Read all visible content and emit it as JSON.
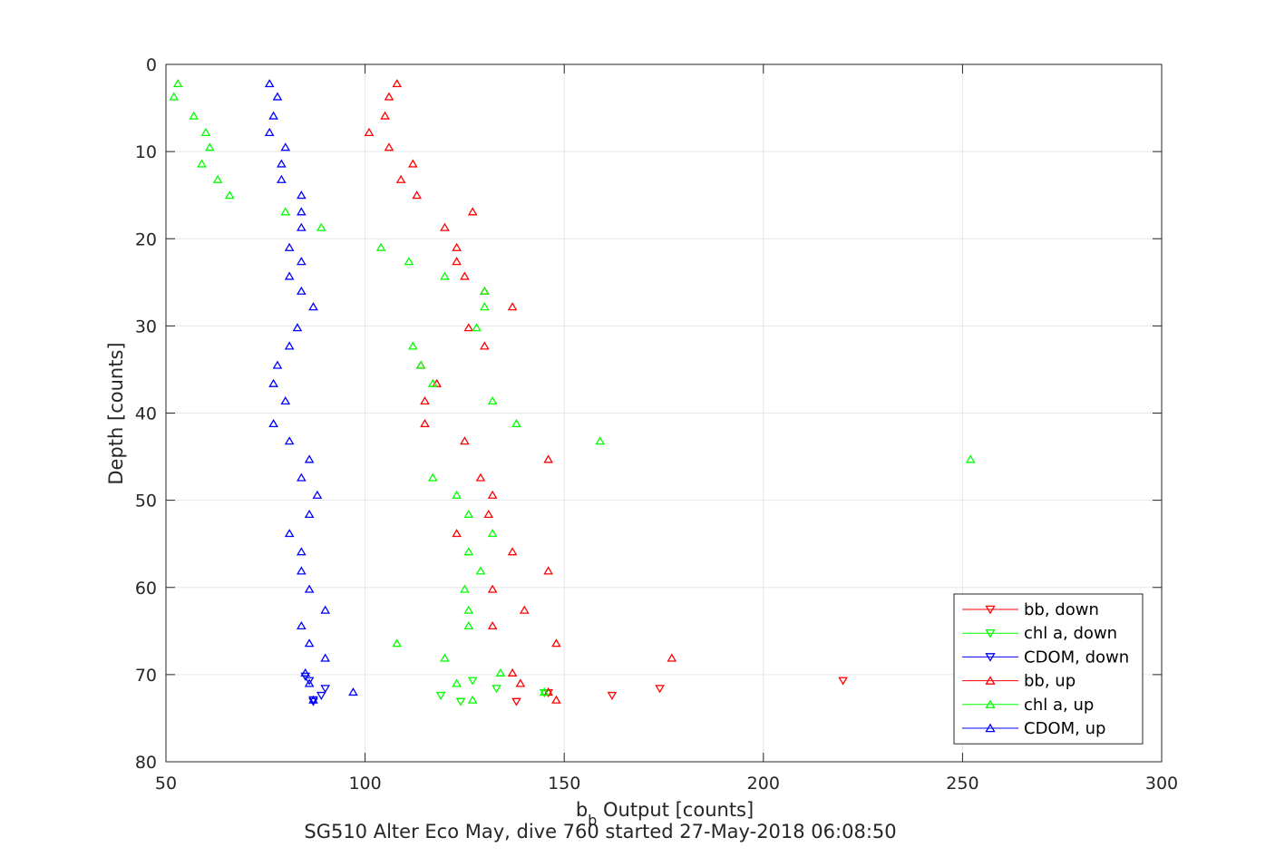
{
  "chart_data": {
    "type": "scatter",
    "title": "SG510 Alter Eco May, dive 760 started 27-May-2018 06:08:50",
    "xlabel_main": "b",
    "xlabel_sub": "b",
    "xlabel_rest": " Output [counts]",
    "ylabel": "Depth [counts]",
    "xlim": [
      50,
      300
    ],
    "ylim": [
      0,
      80
    ],
    "y_reversed": true,
    "xticks": [
      50,
      100,
      150,
      200,
      250,
      300
    ],
    "yticks": [
      0,
      10,
      20,
      30,
      40,
      50,
      60,
      70,
      80
    ],
    "grid": true,
    "legend_position": "bottom-right",
    "series": [
      {
        "name": "bb, down",
        "color": "#ff0000",
        "marker": "triangle-down",
        "points": [
          [
            138,
            73.1
          ],
          [
            162,
            72.4
          ],
          [
            174,
            71.6
          ],
          [
            220,
            70.7
          ],
          [
            146,
            72.1
          ]
        ]
      },
      {
        "name": "chl a, down",
        "color": "#00ff00",
        "marker": "triangle-down",
        "points": [
          [
            124,
            73.1
          ],
          [
            119,
            72.4
          ],
          [
            133,
            71.6
          ],
          [
            127,
            70.7
          ],
          [
            145,
            72.1
          ]
        ]
      },
      {
        "name": "CDOM, down",
        "color": "#0000ff",
        "marker": "triangle-down",
        "points": [
          [
            87,
            73.1
          ],
          [
            89,
            72.4
          ],
          [
            90,
            71.6
          ],
          [
            86,
            70.7
          ],
          [
            85,
            70.2
          ],
          [
            87,
            72.9
          ]
        ]
      },
      {
        "name": "bb, up",
        "color": "#ff0000",
        "marker": "triangle-up",
        "points": [
          [
            108,
            2.2
          ],
          [
            106,
            3.7
          ],
          [
            105,
            5.9
          ],
          [
            101,
            7.8
          ],
          [
            106,
            9.5
          ],
          [
            112,
            11.4
          ],
          [
            109,
            13.2
          ],
          [
            113,
            15.0
          ],
          [
            127,
            16.9
          ],
          [
            120,
            18.7
          ],
          [
            123,
            21.0
          ],
          [
            123,
            22.6
          ],
          [
            125,
            24.3
          ],
          [
            130,
            26.0
          ],
          [
            137,
            27.8
          ],
          [
            126,
            30.2
          ],
          [
            130,
            32.3
          ],
          [
            114,
            34.5
          ],
          [
            118,
            36.6
          ],
          [
            115,
            38.6
          ],
          [
            115,
            41.2
          ],
          [
            125,
            43.2
          ],
          [
            146,
            45.3
          ],
          [
            129,
            47.4
          ],
          [
            132,
            49.4
          ],
          [
            131,
            51.6
          ],
          [
            123,
            53.8
          ],
          [
            137,
            55.9
          ],
          [
            146,
            58.1
          ],
          [
            132,
            60.2
          ],
          [
            140,
            62.6
          ],
          [
            132,
            64.4
          ],
          [
            148,
            66.4
          ],
          [
            177,
            68.1
          ],
          [
            137,
            69.8
          ],
          [
            139,
            71.0
          ],
          [
            146,
            72.0
          ],
          [
            148,
            72.9
          ]
        ]
      },
      {
        "name": "chl a, up",
        "color": "#00ff00",
        "marker": "triangle-up",
        "points": [
          [
            53,
            2.2
          ],
          [
            52,
            3.7
          ],
          [
            57,
            5.9
          ],
          [
            60,
            7.8
          ],
          [
            61,
            9.5
          ],
          [
            59,
            11.4
          ],
          [
            63,
            13.2
          ],
          [
            66,
            15.0
          ],
          [
            80,
            16.9
          ],
          [
            89,
            18.7
          ],
          [
            104,
            21.0
          ],
          [
            111,
            22.6
          ],
          [
            120,
            24.3
          ],
          [
            130,
            26.0
          ],
          [
            130,
            27.8
          ],
          [
            128,
            30.2
          ],
          [
            112,
            32.3
          ],
          [
            114,
            34.5
          ],
          [
            117,
            36.6
          ],
          [
            132,
            38.6
          ],
          [
            138,
            41.2
          ],
          [
            159,
            43.2
          ],
          [
            252,
            45.3
          ],
          [
            117,
            47.4
          ],
          [
            123,
            49.4
          ],
          [
            126,
            51.6
          ],
          [
            132,
            53.8
          ],
          [
            126,
            55.9
          ],
          [
            129,
            58.1
          ],
          [
            125,
            60.2
          ],
          [
            126,
            62.6
          ],
          [
            126,
            64.4
          ],
          [
            108,
            66.4
          ],
          [
            120,
            68.1
          ],
          [
            134,
            69.8
          ],
          [
            123,
            71.0
          ],
          [
            145,
            72.0
          ],
          [
            127,
            72.9
          ]
        ]
      },
      {
        "name": "CDOM, up",
        "color": "#0000ff",
        "marker": "triangle-up",
        "points": [
          [
            76,
            2.2
          ],
          [
            78,
            3.7
          ],
          [
            77,
            5.9
          ],
          [
            76,
            7.8
          ],
          [
            80,
            9.5
          ],
          [
            79,
            11.4
          ],
          [
            79,
            13.2
          ],
          [
            84,
            15.0
          ],
          [
            84,
            16.9
          ],
          [
            84,
            18.7
          ],
          [
            81,
            21.0
          ],
          [
            84,
            22.6
          ],
          [
            81,
            24.3
          ],
          [
            84,
            26.0
          ],
          [
            87,
            27.8
          ],
          [
            83,
            30.2
          ],
          [
            81,
            32.3
          ],
          [
            78,
            34.5
          ],
          [
            77,
            36.6
          ],
          [
            80,
            38.6
          ],
          [
            77,
            41.2
          ],
          [
            81,
            43.2
          ],
          [
            86,
            45.3
          ],
          [
            84,
            47.4
          ],
          [
            88,
            49.4
          ],
          [
            86,
            51.6
          ],
          [
            81,
            53.8
          ],
          [
            84,
            55.9
          ],
          [
            84,
            58.1
          ],
          [
            86,
            60.2
          ],
          [
            90,
            62.6
          ],
          [
            84,
            64.4
          ],
          [
            86,
            66.4
          ],
          [
            90,
            68.1
          ],
          [
            85,
            69.8
          ],
          [
            86,
            71.0
          ],
          [
            97,
            72.0
          ],
          [
            87,
            72.9
          ]
        ]
      }
    ]
  }
}
